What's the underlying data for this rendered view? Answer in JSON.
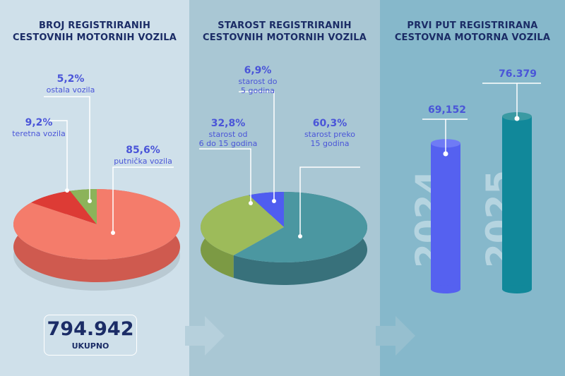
{
  "panels": [
    {
      "title_line1": "BROJ REGISTRIRANIH",
      "title_line2": "CESTOVNIH MOTORNIH VOZILA"
    },
    {
      "title_line1": "STAROST REGISTRIRANIH",
      "title_line2": "CESTOVNIH MOTORNIH VOZILA"
    },
    {
      "title_line1": "PRVI PUT REGISTRIRANA",
      "title_line2": "CESTOVNA MOTORNA VOZILA"
    }
  ],
  "total": {
    "value": "794.942",
    "label": "UKUPNO"
  },
  "chart_data": [
    {
      "type": "pie",
      "title": "BROJ REGISTRIRANIH CESTOVNIH MOTORNIH VOZILA",
      "slices": [
        {
          "label": "ostala vozila",
          "value": 5.2,
          "pct_text": "5,2%",
          "color": "#8cb35a",
          "side": "#6f9244"
        },
        {
          "label": "teretna vozila",
          "value": 9.2,
          "pct_text": "9,2%",
          "color": "#dd3b35",
          "side": "#b22c28"
        },
        {
          "label": "putnička vozila",
          "value": 85.6,
          "pct_text": "85,6%",
          "color": "#f47c6b",
          "side": "#cf5a4f"
        }
      ]
    },
    {
      "type": "pie",
      "title": "STAROST REGISTRIRANIH CESTOVNIH MOTORNIH VOZILA",
      "slices": [
        {
          "label": "starost do 5 godina",
          "label_l1": "starost do",
          "label_l2": "5 godina",
          "value": 6.9,
          "pct_text": "6,9%",
          "color": "#4f5df0",
          "side": "#3b47c0"
        },
        {
          "label": "starost od 6 do 15 godina",
          "label_l1": "starost od",
          "label_l2": "6 do 15 godina",
          "value": 32.8,
          "pct_text": "32,8%",
          "color": "#9dbb5a",
          "side": "#7c9a44"
        },
        {
          "label": "starost preko 15 godina",
          "label_l1": "starost preko",
          "label_l2": "15 godina",
          "value": 60.3,
          "pct_text": "60,3%",
          "color": "#4b97a1",
          "side": "#38717b"
        }
      ]
    },
    {
      "type": "bar",
      "title": "PRVI PUT REGISTRIRANA CESTOVNA MOTORNA VOZILA",
      "categories": [
        "2024",
        "2025"
      ],
      "values": [
        69152,
        76379
      ],
      "value_labels": [
        "69,152",
        "76.379"
      ],
      "colors": [
        "#5561f0",
        "#11889a"
      ],
      "top_colors": [
        "#6f7bf5",
        "#3a9aa3"
      ]
    }
  ]
}
